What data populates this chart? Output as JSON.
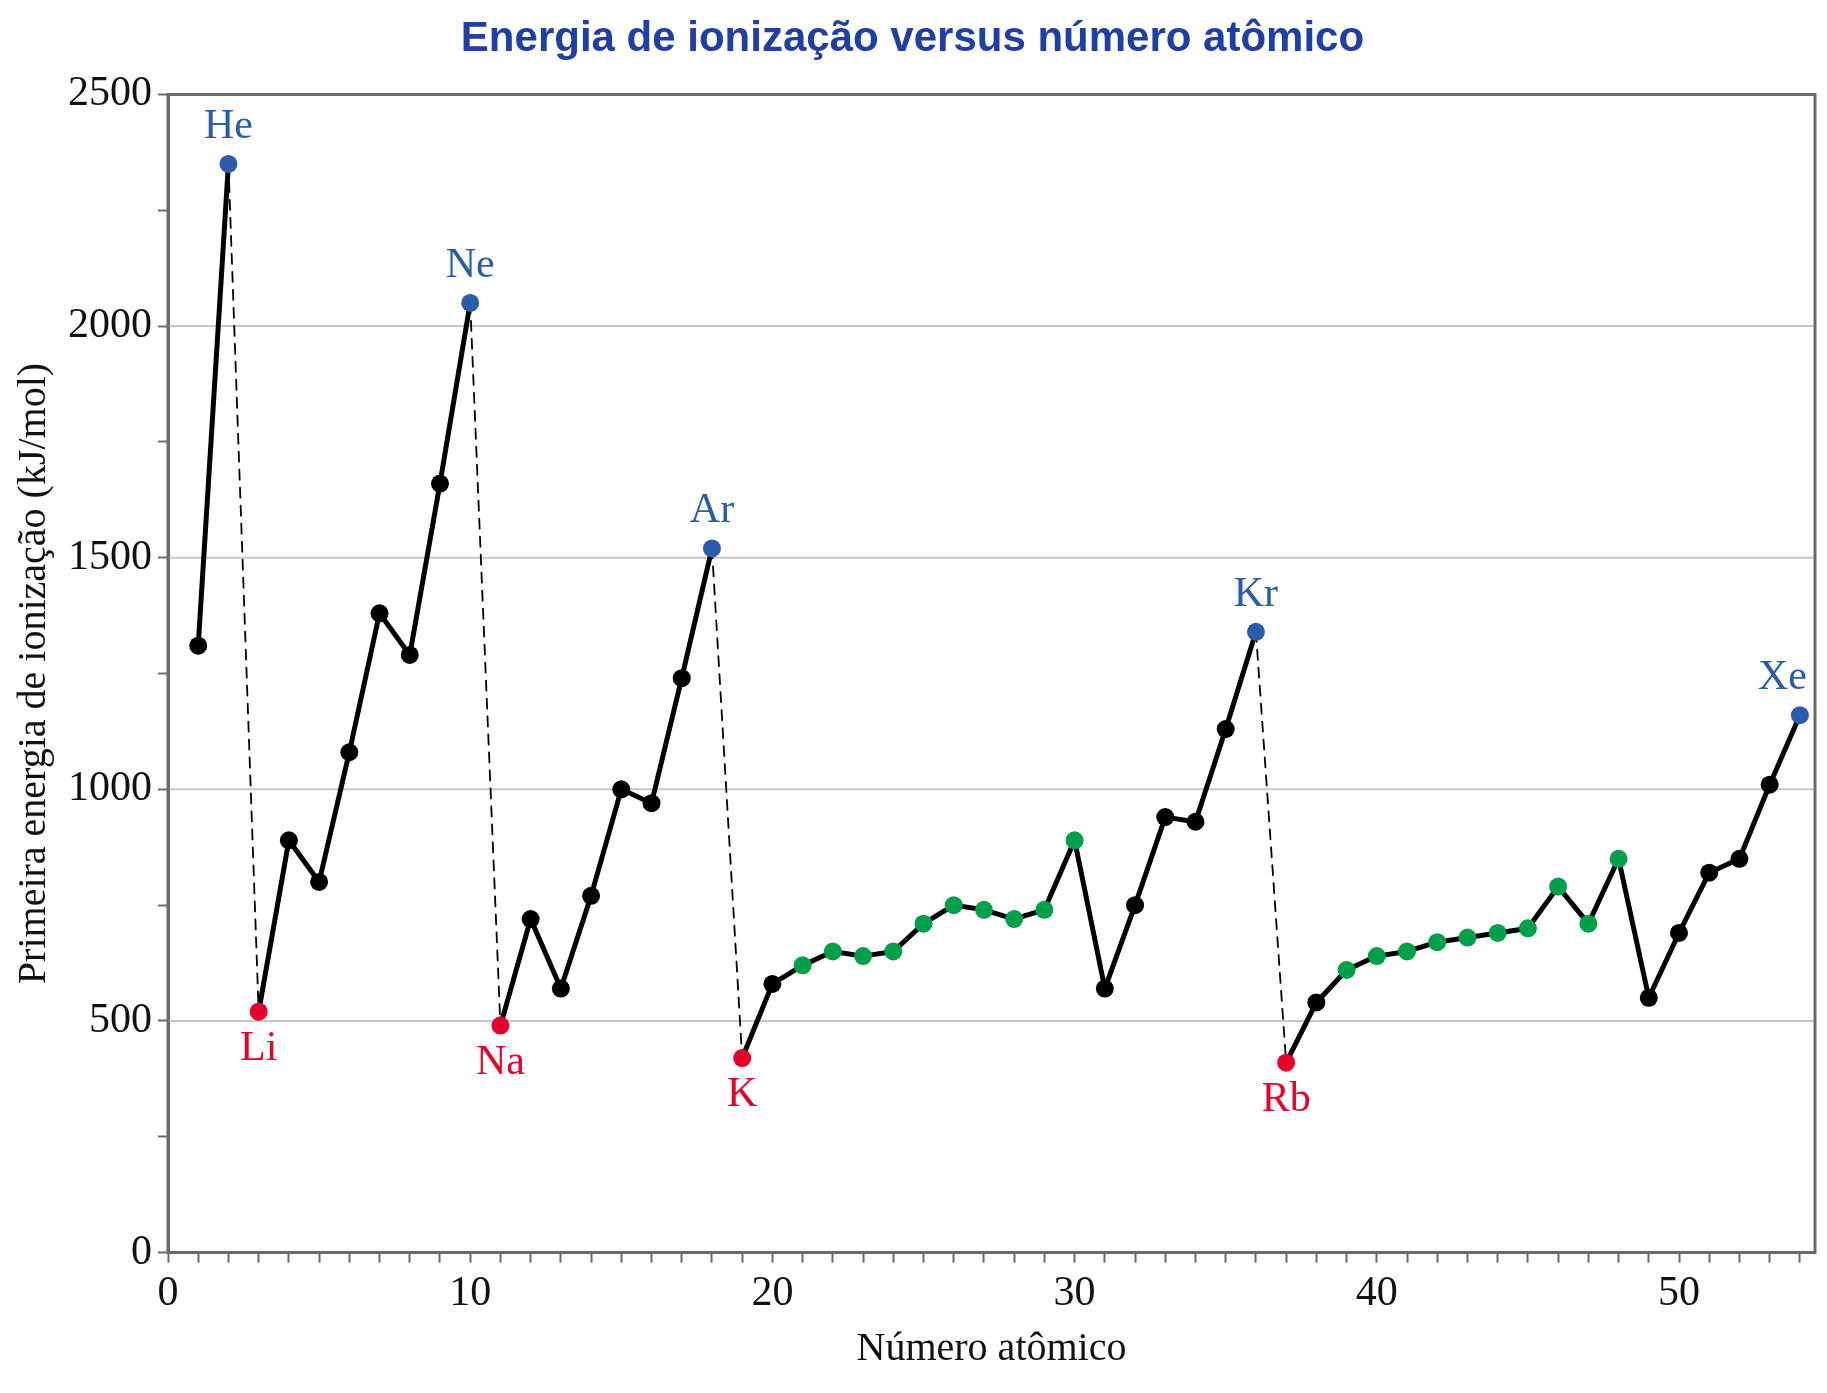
{
  "chart_data": {
    "type": "line",
    "title": "Energia de ionização versus número atômico",
    "xlabel": "Número atômico",
    "ylabel": "Primeira energia de ionização (kJ/mol)",
    "xlim": [
      0,
      54.5
    ],
    "xticks": [
      0,
      {
        "value": 1,
        "label": null
      },
      {
        "value": 2,
        "label": null
      },
      {
        "value": 3,
        "label": null
      },
      {
        "value": 4,
        "label": null
      },
      {
        "value": 5,
        "label": null
      },
      {
        "value": 6,
        "label": null
      },
      {
        "value": 7,
        "label": null
      },
      {
        "value": 8,
        "label": null
      },
      {
        "value": 9,
        "label": null
      },
      10,
      {
        "value": 11,
        "label": null
      },
      {
        "value": 12,
        "label": null
      },
      {
        "value": 13,
        "label": null
      },
      {
        "value": 14,
        "label": null
      },
      {
        "value": 15,
        "label": null
      },
      {
        "value": 16,
        "label": null
      },
      {
        "value": 17,
        "label": null
      },
      {
        "value": 18,
        "label": null
      },
      {
        "value": 19,
        "label": null
      },
      20,
      {
        "value": 21,
        "label": null
      },
      {
        "value": 22,
        "label": null
      },
      {
        "value": 23,
        "label": null
      },
      {
        "value": 24,
        "label": null
      },
      {
        "value": 25,
        "label": null
      },
      {
        "value": 26,
        "label": null
      },
      {
        "value": 27,
        "label": null
      },
      {
        "value": 28,
        "label": null
      },
      {
        "value": 29,
        "label": null
      },
      30,
      {
        "value": 31,
        "label": null
      },
      {
        "value": 32,
        "label": null
      },
      {
        "value": 33,
        "label": null
      },
      {
        "value": 34,
        "label": null
      },
      {
        "value": 35,
        "label": null
      },
      {
        "value": 36,
        "label": null
      },
      {
        "value": 37,
        "label": null
      },
      {
        "value": 38,
        "label": null
      },
      {
        "value": 39,
        "label": null
      },
      40,
      {
        "value": 41,
        "label": null
      },
      {
        "value": 42,
        "label": null
      },
      {
        "value": 43,
        "label": null
      },
      {
        "value": 44,
        "label": null
      },
      {
        "value": 45,
        "label": null
      },
      {
        "value": 46,
        "label": null
      },
      {
        "value": 47,
        "label": null
      },
      {
        "value": 48,
        "label": null
      },
      {
        "value": 49,
        "label": null
      },
      50,
      {
        "value": 51,
        "label": null
      },
      {
        "value": 52,
        "label": null
      },
      {
        "value": 53,
        "label": null
      },
      {
        "value": 54,
        "label": null
      }
    ],
    "ylim": [
      0,
      2500
    ],
    "yticks": [
      0,
      {
        "value": 250,
        "label": null
      },
      500,
      {
        "value": 750,
        "label": null
      },
      1000,
      {
        "value": 1250,
        "label": null
      },
      1500,
      {
        "value": 1750,
        "label": null
      },
      2000,
      {
        "value": 2250,
        "label": null
      },
      2500
    ],
    "grid": "y",
    "legend": false,
    "series": [
      {
        "line_style": "dashed",
        "marker": "none",
        "color": "#000000",
        "x": [
          2,
          3
        ],
        "values": [
          2350,
          520
        ]
      },
      {
        "line_style": "dashed",
        "marker": "none",
        "color": "#000000",
        "x": [
          10,
          11
        ],
        "values": [
          2050,
          490
        ]
      },
      {
        "line_style": "dashed",
        "marker": "none",
        "color": "#000000",
        "x": [
          18,
          19
        ],
        "values": [
          1520,
          420
        ]
      },
      {
        "line_style": "dashed",
        "marker": "none",
        "color": "#000000",
        "x": [
          36,
          37
        ],
        "values": [
          1340,
          410
        ]
      },
      {
        "line_style": "solid",
        "marker": "circle",
        "color": "#000000",
        "x": [
          1,
          2
        ],
        "values": [
          1310,
          2350
        ],
        "colors": [
          "#000000",
          "#2a5caa"
        ]
      },
      {
        "line_style": "solid",
        "marker": "circle",
        "color": "#000000",
        "x": [
          3,
          4,
          5,
          6,
          7,
          8,
          9,
          10
        ],
        "values": [
          520,
          890,
          800,
          1080,
          1380,
          1290,
          1660,
          2050
        ],
        "colors": [
          "#e4002b",
          "#000000",
          "#000000",
          "#000000",
          "#000000",
          "#000000",
          "#000000",
          "#2a5caa"
        ]
      },
      {
        "line_style": "solid",
        "marker": "circle",
        "color": "#000000",
        "x": [
          11,
          12,
          13,
          14,
          15,
          16,
          17,
          18
        ],
        "values": [
          490,
          720,
          570,
          770,
          1000,
          970,
          1240,
          1520
        ],
        "colors": [
          "#e4002b",
          "#000000",
          "#000000",
          "#000000",
          "#000000",
          "#000000",
          "#000000",
          "#2a5caa"
        ]
      },
      {
        "line_style": "solid",
        "marker": "circle",
        "color": "#000000",
        "x": [
          19,
          20,
          21,
          22,
          23,
          24,
          25,
          26,
          27,
          28,
          29,
          30,
          31,
          32,
          33,
          34,
          35,
          36
        ],
        "values": [
          420,
          580,
          620,
          650,
          640,
          650,
          710,
          750,
          740,
          720,
          740,
          890,
          570,
          750,
          940,
          930,
          1130,
          1340
        ],
        "colors": [
          "#e4002b",
          "#000000",
          "#00a04a",
          "#00a04a",
          "#00a04a",
          "#00a04a",
          "#00a04a",
          "#00a04a",
          "#00a04a",
          "#00a04a",
          "#00a04a",
          "#00a04a",
          "#000000",
          "#000000",
          "#000000",
          "#000000",
          "#000000",
          "#2a5caa"
        ]
      },
      {
        "line_style": "solid",
        "marker": "circle",
        "color": "#000000",
        "x": [
          37,
          38,
          39,
          40,
          41,
          42,
          43,
          44,
          45,
          46,
          47,
          48,
          49,
          50,
          51,
          52,
          53,
          54
        ],
        "values": [
          410,
          540,
          610,
          640,
          650,
          670,
          680,
          690,
          700,
          790,
          710,
          850,
          550,
          690,
          820,
          850,
          1010,
          1160
        ],
        "colors": [
          "#e4002b",
          "#000000",
          "#00a04a",
          "#00a04a",
          "#00a04a",
          "#00a04a",
          "#00a04a",
          "#00a04a",
          "#00a04a",
          "#00a04a",
          "#00a04a",
          "#00a04a",
          "#000000",
          "#000000",
          "#000000",
          "#000000",
          "#000000",
          "#2a5caa"
        ]
      }
    ],
    "annotations": [
      {
        "text": "He",
        "x": 2,
        "y": 2350
      },
      {
        "text": "Ne",
        "x": 10,
        "y": 2050
      },
      {
        "text": "Ar",
        "x": 18,
        "y": 1520
      },
      {
        "text": "Kr",
        "x": 36,
        "y": 1340
      },
      {
        "text": "Xe",
        "x": 54,
        "y": 1160
      },
      {
        "text": "Li",
        "x": 3,
        "y": 520
      },
      {
        "text": "Na",
        "x": 11,
        "y": 490
      },
      {
        "text": "K",
        "x": 19,
        "y": 420
      },
      {
        "text": "Rb",
        "x": 37,
        "y": 410
      }
    ]
  }
}
